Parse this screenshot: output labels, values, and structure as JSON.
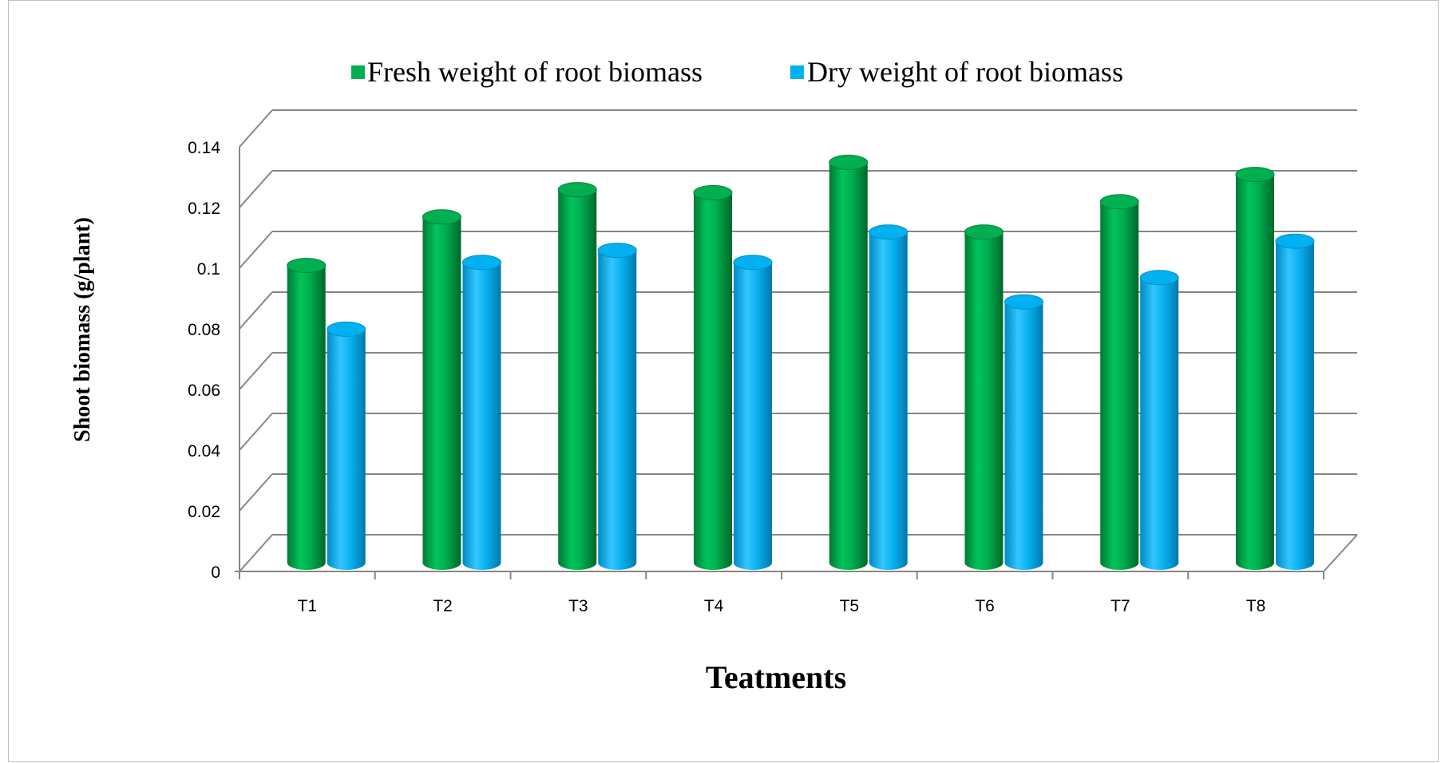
{
  "chart_data": {
    "type": "bar",
    "style": "3d-cylinder",
    "xlabel": "Teatments",
    "ylabel": "Shoot biomass (g/plant)",
    "categories": [
      "T1",
      "T2",
      "T3",
      "T4",
      "T5",
      "T6",
      "T7",
      "T8"
    ],
    "ylim": [
      0,
      0.14
    ],
    "ytick_labels": [
      "0",
      "0.02",
      "0.04",
      "0.06",
      "0.08",
      "0.1",
      "0.12",
      "0.14"
    ],
    "grid": true,
    "legend_position": "top-center",
    "series": [
      {
        "name": "Fresh weight of root biomass",
        "color": "#00b050",
        "values": [
          0.098,
          0.114,
          0.123,
          0.122,
          0.132,
          0.109,
          0.119,
          0.128
        ]
      },
      {
        "name": "Dry weight of root biomass",
        "color": "#00b0f0",
        "values": [
          0.077,
          0.099,
          0.103,
          0.099,
          0.109,
          0.086,
          0.094,
          0.106
        ]
      }
    ]
  }
}
